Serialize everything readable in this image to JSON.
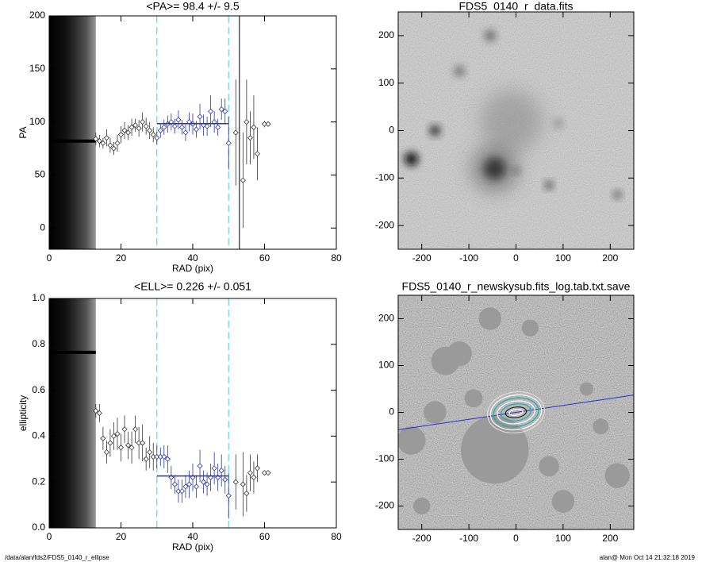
{
  "chart_data": [
    {
      "type": "scatter",
      "title": "<PA>=  98.4 +/-   9.5",
      "xlabel": "RAD (pix)",
      "ylabel": "PA",
      "xlim": [
        0,
        80
      ],
      "xticks": [
        0,
        20,
        40,
        60,
        80
      ],
      "ylim": [
        -20,
        200
      ],
      "yticks": [
        0,
        50,
        100,
        150,
        200
      ],
      "x": [
        13,
        14,
        15,
        16,
        17,
        18,
        19,
        20,
        21,
        22,
        23,
        24,
        25,
        26,
        27,
        28,
        29,
        30,
        31,
        32,
        33,
        34,
        35,
        36,
        37,
        38,
        39,
        40,
        41,
        42,
        43,
        44,
        45,
        46,
        47,
        48,
        49,
        50,
        52,
        54,
        55,
        56,
        57,
        58,
        60,
        61
      ],
      "values": [
        84,
        82,
        80,
        85,
        78,
        75,
        80,
        88,
        92,
        90,
        95,
        97,
        94,
        100,
        96,
        92,
        88,
        85,
        92,
        95,
        98,
        100,
        96,
        102,
        95,
        90,
        100,
        98,
        93,
        105,
        97,
        96,
        110,
        100,
        95,
        112,
        110,
        80,
        90,
        45,
        100,
        85,
        95,
        70,
        98,
        98
      ],
      "errors": [
        6,
        6,
        5,
        8,
        7,
        6,
        8,
        8,
        8,
        7,
        8,
        6,
        8,
        9,
        8,
        8,
        7,
        6,
        7,
        7,
        8,
        8,
        7,
        9,
        7,
        8,
        9,
        10,
        8,
        12,
        10,
        9,
        15,
        10,
        8,
        10,
        12,
        25,
        50,
        45,
        40,
        25,
        30,
        25,
        3,
        2
      ],
      "color": "#333333",
      "highlight_color": "#2b35a8",
      "fit": {
        "x": [
          30,
          50
        ],
        "value": 98.4,
        "color": "#2b35a8"
      },
      "vlines": [
        30,
        50
      ],
      "vline_color": "#7fe0e8",
      "marker_x": 53,
      "inner_region": [
        0,
        13
      ],
      "inner_value": 82
    },
    {
      "type": "image",
      "title": "FDS5_0140_r_data.fits",
      "variant": "data",
      "xlim": [
        -250,
        250
      ],
      "xticks": [
        -200,
        -100,
        0,
        100,
        200
      ],
      "ylim": [
        -250,
        250
      ],
      "yticks": [
        -200,
        -100,
        0,
        100,
        200
      ]
    },
    {
      "type": "scatter",
      "title": "<ELL>= 0.226 +/-  0.051",
      "xlabel": "RAD (pix)",
      "ylabel": "ellipticity",
      "xlim": [
        0,
        80
      ],
      "xticks": [
        0,
        20,
        40,
        60,
        80
      ],
      "ylim": [
        0,
        1
      ],
      "yticks": [
        {
          "value": 0,
          "label": "0.0"
        },
        0.2,
        0.4,
        0.6,
        0.8,
        {
          "value": 1,
          "label": "1.0"
        }
      ],
      "x": [
        13,
        14,
        15,
        16,
        17,
        18,
        19,
        20,
        21,
        22,
        23,
        24,
        25,
        26,
        27,
        28,
        29,
        30,
        31,
        32,
        33,
        34,
        35,
        36,
        37,
        38,
        39,
        40,
        41,
        42,
        43,
        44,
        45,
        46,
        47,
        48,
        49,
        50,
        52,
        54,
        55,
        56,
        57,
        58,
        60,
        61
      ],
      "values": [
        0.51,
        0.5,
        0.39,
        0.33,
        0.37,
        0.4,
        0.41,
        0.35,
        0.43,
        0.36,
        0.35,
        0.43,
        0.37,
        0.37,
        0.3,
        0.33,
        0.31,
        0.31,
        0.31,
        0.31,
        0.3,
        0.22,
        0.19,
        0.16,
        0.16,
        0.18,
        0.19,
        0.22,
        0.18,
        0.27,
        0.2,
        0.19,
        0.22,
        0.26,
        0.22,
        0.25,
        0.21,
        0.14,
        0.2,
        0.19,
        0.15,
        0.24,
        0.22,
        0.26,
        0.24,
        0.24
      ],
      "errors": [
        0.03,
        0.04,
        0.05,
        0.05,
        0.06,
        0.06,
        0.07,
        0.06,
        0.06,
        0.06,
        0.07,
        0.06,
        0.07,
        0.08,
        0.05,
        0.07,
        0.06,
        0.05,
        0.04,
        0.05,
        0.06,
        0.05,
        0.04,
        0.05,
        0.05,
        0.05,
        0.06,
        0.06,
        0.05,
        0.07,
        0.05,
        0.05,
        0.06,
        0.07,
        0.06,
        0.07,
        0.06,
        0.1,
        0.12,
        0.14,
        0.08,
        0.08,
        0.07,
        0.06,
        0.01,
        0.01
      ],
      "color": "#333333",
      "highlight_color": "#2b35a8",
      "fit": {
        "x": [
          30,
          50
        ],
        "value": 0.226,
        "color": "#2b35a8"
      },
      "vlines": [
        30,
        50
      ],
      "vline_color": "#7fe0e8",
      "inner_region": [
        0,
        13
      ],
      "inner_value": 0.765
    },
    {
      "type": "image",
      "title": "FDS5_0140_r_newskysub.fits_log.tab.txt.save",
      "variant": "model",
      "xlim": [
        -250,
        250
      ],
      "xticks": [
        -200,
        -100,
        0,
        100,
        200
      ],
      "ylim": [
        -250,
        250
      ],
      "yticks": [
        -200,
        -100,
        0,
        100,
        200
      ]
    }
  ],
  "footer": {
    "left": "/data/alan/fds2/FDS5_0140_r_ellipse",
    "right": "alan@  Mon Oct 14 21:32:18 2019"
  }
}
